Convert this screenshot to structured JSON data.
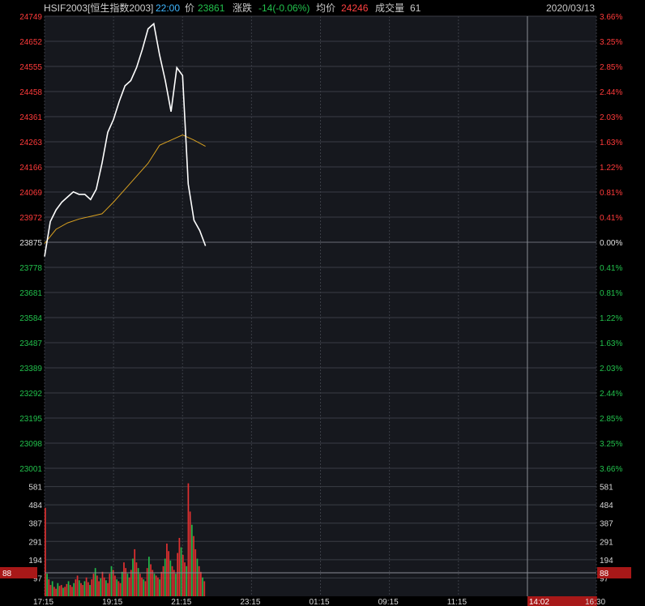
{
  "header": {
    "symbol": "HSIF2003[恒生指数2003]",
    "time": "22:00",
    "price_label": "价",
    "price": "23861",
    "change_label": "涨跌",
    "change": "-14(-0.06%)",
    "avg_label": "均价",
    "avg": "24246",
    "volume_label": "成交量",
    "volume": "61",
    "date": "2020/03/13"
  },
  "colors": {
    "background": "#000000",
    "plot_background": "#16181e",
    "grid": "#3a3d45",
    "up": "#e03030",
    "down": "#22b84a",
    "price_line": "#ffffff",
    "avg_line": "#d8a020",
    "time_accent": "#3fb6ff",
    "cursor_tag": "#a81818"
  },
  "chart_data": {
    "type": "line",
    "title": "",
    "x_ticks": [
      "17:15",
      "19:15",
      "21:15",
      "23:15",
      "01:15",
      "09:15",
      "11:15",
      "14:02",
      "16:30"
    ],
    "highlighted_x_tick": "14:02",
    "price_ticks_left": [
      "24749",
      "24652",
      "24555",
      "24458",
      "24361",
      "24263",
      "24166",
      "24069",
      "23972",
      "23875",
      "23778",
      "23681",
      "23584",
      "23487",
      "23389",
      "23292",
      "23195",
      "23098",
      "23001"
    ],
    "pct_ticks_right": [
      "3.66%",
      "3.25%",
      "2.85%",
      "2.44%",
      "2.03%",
      "1.63%",
      "1.22%",
      "0.81%",
      "0.41%",
      "0.00%",
      "0.41%",
      "0.81%",
      "1.22%",
      "1.63%",
      "2.03%",
      "2.44%",
      "2.85%",
      "3.25%",
      "3.66%"
    ],
    "volume_ticks": [
      "581",
      "484",
      "387",
      "291",
      "194",
      "97"
    ],
    "prev_close": 23875,
    "ylim": [
      23001,
      24749
    ],
    "volume_ylim": [
      0,
      680
    ],
    "cursor_value": "88",
    "price_series": {
      "x": [
        "17:15",
        "17:25",
        "17:35",
        "17:45",
        "17:55",
        "18:05",
        "18:15",
        "18:25",
        "18:35",
        "18:45",
        "18:55",
        "19:05",
        "19:15",
        "19:25",
        "19:35",
        "19:45",
        "19:55",
        "20:05",
        "20:15",
        "20:25",
        "20:35",
        "20:45",
        "20:55",
        "21:05",
        "21:15",
        "21:25",
        "21:35",
        "21:45",
        "21:55"
      ],
      "values": [
        23820,
        23955,
        24000,
        24030,
        24050,
        24070,
        24060,
        24060,
        24040,
        24080,
        24180,
        24300,
        24350,
        24420,
        24480,
        24500,
        24550,
        24620,
        24700,
        24720,
        24600,
        24500,
        24380,
        24550,
        24520,
        24100,
        23960,
        23920,
        23861
      ]
    },
    "avg_series": {
      "x": [
        "17:15",
        "17:35",
        "17:55",
        "18:15",
        "18:35",
        "18:55",
        "19:15",
        "19:35",
        "19:55",
        "20:15",
        "20:35",
        "20:55",
        "21:15",
        "21:35",
        "21:55"
      ],
      "values": [
        23870,
        23925,
        23950,
        23965,
        23975,
        23985,
        24030,
        24080,
        24130,
        24180,
        24250,
        24270,
        24290,
        24270,
        24246
      ]
    },
    "volume_bars": {
      "count": 90,
      "values": [
        470,
        120,
        90,
        60,
        80,
        50,
        40,
        70,
        55,
        60,
        45,
        50,
        65,
        80,
        60,
        50,
        70,
        90,
        110,
        85,
        70,
        60,
        80,
        100,
        75,
        60,
        90,
        120,
        150,
        110,
        80,
        95,
        130,
        100,
        85,
        70,
        120,
        160,
        140,
        110,
        90,
        80,
        70,
        130,
        180,
        150,
        120,
        100,
        140,
        200,
        250,
        180,
        150,
        120,
        100,
        90,
        80,
        150,
        210,
        170,
        140,
        120,
        110,
        100,
        90,
        130,
        160,
        200,
        280,
        240,
        190,
        160,
        140,
        120,
        230,
        310,
        260,
        220,
        180,
        160,
        600,
        450,
        380,
        320,
        250,
        200,
        160,
        130,
        100,
        80
      ],
      "colors": [
        "up",
        "down"
      ]
    }
  }
}
